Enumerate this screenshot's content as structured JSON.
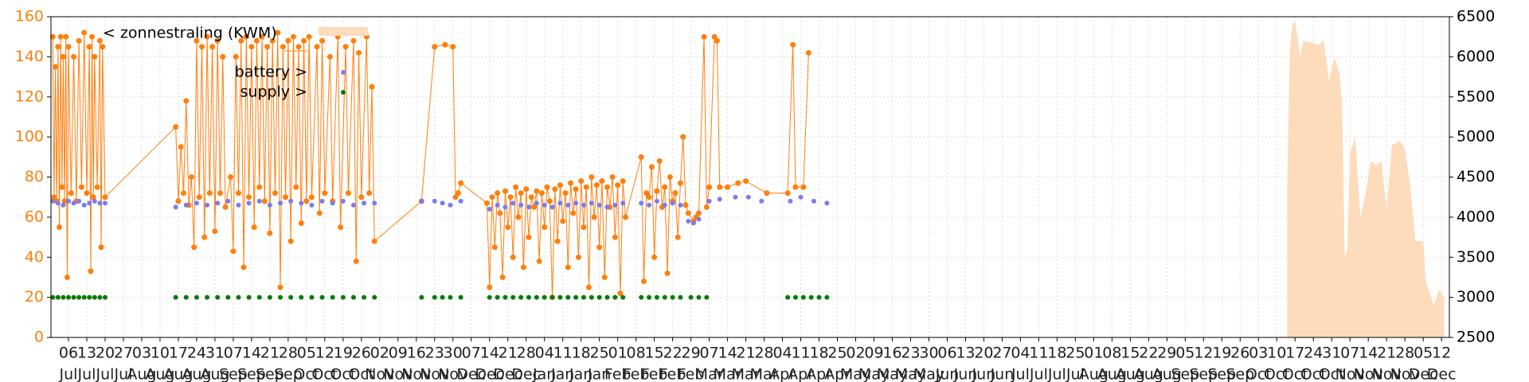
{
  "chart_data": {
    "type": "line",
    "xlim": [
      -6.7,
      528
    ],
    "ylim": [
      0,
      160
    ],
    "y2lim": [
      2500,
      6500
    ],
    "yticks": [
      0,
      20,
      40,
      60,
      80,
      100,
      120,
      140,
      160
    ],
    "y2ticks": [
      2500,
      3000,
      3500,
      4000,
      4500,
      5000,
      5500,
      6000,
      6500
    ],
    "grid": true,
    "xticks": [
      {
        "value": 0,
        "label": "06"
      },
      {
        "value": 7,
        "label": "13"
      },
      {
        "value": 14,
        "label": "20"
      },
      {
        "value": 21,
        "label": "27"
      },
      {
        "value": 28,
        "label": "03"
      },
      {
        "value": 35,
        "label": "10"
      },
      {
        "value": 42,
        "label": "17"
      },
      {
        "value": 49,
        "label": "24"
      },
      {
        "value": 56,
        "label": "31"
      },
      {
        "value": 63,
        "label": "07"
      },
      {
        "value": 70,
        "label": "14"
      },
      {
        "value": 77,
        "label": "21"
      },
      {
        "value": 84,
        "label": "28"
      },
      {
        "value": 91,
        "label": "05"
      },
      {
        "value": 98,
        "label": "12"
      },
      {
        "value": 105,
        "label": "19"
      },
      {
        "value": 112,
        "label": "26"
      },
      {
        "value": 119,
        "label": "02"
      },
      {
        "value": 126,
        "label": "09"
      },
      {
        "value": 133,
        "label": "16"
      },
      {
        "value": 140,
        "label": "23"
      },
      {
        "value": 147,
        "label": "30"
      },
      {
        "value": 154,
        "label": "07"
      },
      {
        "value": 161,
        "label": "14"
      },
      {
        "value": 168,
        "label": "21"
      },
      {
        "value": 175,
        "label": "28"
      },
      {
        "value": 182,
        "label": "04"
      },
      {
        "value": 189,
        "label": "11"
      },
      {
        "value": 196,
        "label": "18"
      },
      {
        "value": 203,
        "label": "25"
      },
      {
        "value": 210,
        "label": "01"
      },
      {
        "value": 217,
        "label": "08"
      },
      {
        "value": 224,
        "label": "15"
      },
      {
        "value": 231,
        "label": "22"
      },
      {
        "value": 238,
        "label": "29"
      },
      {
        "value": 245,
        "label": "07"
      },
      {
        "value": 252,
        "label": "14"
      },
      {
        "value": 259,
        "label": "21"
      },
      {
        "value": 266,
        "label": "28"
      },
      {
        "value": 273,
        "label": "04"
      },
      {
        "value": 280,
        "label": "11"
      },
      {
        "value": 287,
        "label": "18"
      },
      {
        "value": 294,
        "label": "25"
      },
      {
        "value": 301,
        "label": "02"
      },
      {
        "value": 308,
        "label": "09"
      },
      {
        "value": 315,
        "label": "16"
      },
      {
        "value": 322,
        "label": "23"
      },
      {
        "value": 329,
        "label": "30"
      },
      {
        "value": 336,
        "label": "06"
      },
      {
        "value": 343,
        "label": "13"
      },
      {
        "value": 350,
        "label": "20"
      },
      {
        "value": 357,
        "label": "27"
      },
      {
        "value": 364,
        "label": "04"
      },
      {
        "value": 371,
        "label": "11"
      },
      {
        "value": 378,
        "label": "18"
      },
      {
        "value": 385,
        "label": "25"
      },
      {
        "value": 392,
        "label": "01"
      },
      {
        "value": 399,
        "label": "08"
      },
      {
        "value": 406,
        "label": "15"
      },
      {
        "value": 413,
        "label": "22"
      },
      {
        "value": 420,
        "label": "29"
      },
      {
        "value": 427,
        "label": "05"
      },
      {
        "value": 434,
        "label": "12"
      },
      {
        "value": 441,
        "label": "19"
      },
      {
        "value": 448,
        "label": "26"
      },
      {
        "value": 455,
        "label": "03"
      },
      {
        "value": 462,
        "label": "10"
      },
      {
        "value": 469,
        "label": "17"
      },
      {
        "value": 476,
        "label": "24"
      },
      {
        "value": 483,
        "label": "31"
      },
      {
        "value": 490,
        "label": "07"
      },
      {
        "value": 497,
        "label": "14"
      },
      {
        "value": 504,
        "label": "21"
      },
      {
        "value": 511,
        "label": "28"
      },
      {
        "value": 518,
        "label": "05"
      },
      {
        "value": 525,
        "label": "12"
      }
    ],
    "xtick_months": [
      "Jul",
      "Jul",
      "Jul",
      "Jul",
      "Aug",
      "Aug",
      "Aug",
      "Aug",
      "Aug",
      "Sep",
      "Sep",
      "Sep",
      "Sep",
      "Oct",
      "Oct",
      "Oct",
      "Oct",
      "Nov",
      "Nov",
      "Nov",
      "Nov",
      "Nov",
      "Dec",
      "Dec",
      "Dec",
      "Dec",
      "Jan",
      "Jan",
      "Jan",
      "Jan",
      "Feb",
      "Feb",
      "Feb",
      "Feb",
      "Feb",
      "Mar",
      "Mar",
      "Mar",
      "Mar",
      "Apr",
      "Apr",
      "Apr",
      "Apr",
      "May",
      "May",
      "May",
      "May",
      "May",
      "Jun",
      "Jun",
      "Jun",
      "Jun",
      "Jul",
      "Jul",
      "Jul",
      "Jul",
      "Aug",
      "Aug",
      "Aug",
      "Aug",
      "Aug",
      "Sep",
      "Sep",
      "Sep",
      "Sep",
      "Oct",
      "Oct",
      "Oct",
      "Oct",
      "Oct",
      "Nov",
      "Nov",
      "Nov",
      "Nov",
      "Dec",
      "Dec"
    ],
    "series": [
      {
        "name": "< zonnestraling (KWM)",
        "color": "#ff7f0e",
        "style": "line",
        "x": [
          -6,
          -5.5,
          -5,
          -4.5,
          -4,
          -3.5,
          -3,
          -2.5,
          -2,
          -1.5,
          -1,
          -0.5,
          0,
          1,
          2,
          3,
          4,
          5,
          6,
          7,
          8,
          8.5,
          9,
          9.5,
          10,
          11,
          12,
          12.5,
          13,
          14,
          41,
          42,
          43,
          44,
          45,
          46,
          47,
          48,
          49,
          50,
          51,
          52,
          53,
          54,
          55,
          56,
          57,
          58,
          59,
          60,
          62,
          63,
          64,
          65,
          66,
          67,
          68,
          69,
          70,
          71,
          72,
          73,
          74,
          75,
          76,
          77,
          78,
          79,
          80,
          81,
          82,
          83,
          84,
          85,
          86,
          87,
          88,
          89,
          90,
          91,
          92,
          93,
          95,
          96,
          97,
          98,
          100,
          101,
          103,
          104,
          106,
          107,
          109,
          110,
          111,
          112,
          114,
          115,
          116,
          117,
          135,
          140,
          144,
          147,
          148,
          149,
          150,
          160,
          161,
          162,
          163,
          164,
          165,
          166,
          167,
          168,
          169,
          170,
          171,
          172,
          173,
          174,
          175,
          176,
          177,
          178,
          179,
          180,
          181,
          182,
          183,
          184,
          185,
          186,
          187,
          188,
          189,
          190,
          191,
          192,
          193,
          194,
          195,
          196,
          197,
          198,
          199,
          200,
          201,
          202,
          203,
          204,
          205,
          206,
          207,
          208,
          209,
          210,
          211,
          212,
          213,
          219,
          220,
          221,
          222,
          223,
          224,
          225,
          226,
          227,
          228,
          229,
          230,
          231,
          232,
          233,
          234,
          235,
          236,
          237,
          239,
          240,
          241,
          243,
          244,
          245,
          247,
          248,
          249,
          252,
          256,
          259,
          267,
          275,
          277,
          278,
          281,
          283
        ],
        "values": [
          150,
          70,
          135,
          68,
          145,
          55,
          150,
          75,
          140,
          68,
          150,
          30,
          145,
          72,
          140,
          68,
          148,
          75,
          152,
          72,
          145,
          33,
          150,
          70,
          140,
          75,
          148,
          45,
          145,
          70,
          105,
          68,
          95,
          72,
          118,
          66,
          80,
          45,
          148,
          70,
          145,
          50,
          150,
          72,
          145,
          53,
          148,
          72,
          140,
          65,
          80,
          43,
          140,
          72,
          148,
          35,
          150,
          70,
          145,
          55,
          148,
          75,
          150,
          68,
          145,
          52,
          148,
          72,
          152,
          25,
          145,
          70,
          148,
          48,
          150,
          75,
          145,
          57,
          148,
          68,
          150,
          70,
          145,
          62,
          148,
          72,
          140,
          68,
          150,
          55,
          145,
          72,
          148,
          38,
          142,
          70,
          150,
          72,
          125,
          48,
          68,
          145,
          146,
          145,
          70,
          72,
          77,
          67,
          25,
          70,
          45,
          72,
          62,
          30,
          73,
          55,
          70,
          40,
          75,
          60,
          72,
          35,
          74,
          50,
          70,
          65,
          73,
          38,
          72,
          55,
          75,
          68,
          20,
          74,
          48,
          76,
          58,
          72,
          35,
          77,
          62,
          74,
          40,
          78,
          55,
          75,
          25,
          80,
          60,
          76,
          45,
          78,
          30,
          75,
          65,
          80,
          50,
          76,
          22,
          78,
          60,
          90,
          28,
          72,
          70,
          85,
          40,
          73,
          88,
          65,
          75,
          32,
          80,
          68,
          72,
          50,
          77,
          100,
          66,
          62,
          58,
          60,
          62,
          150,
          65,
          75,
          150,
          148,
          75,
          75,
          77,
          78,
          72,
          72,
          146,
          75,
          75,
          142
        ]
      },
      {
        "name": "battery >",
        "color": "#7b7bf0",
        "style": "dots",
        "x": [
          -6,
          -4,
          -2,
          0,
          2,
          4,
          6,
          8,
          10,
          12,
          14,
          41,
          45,
          49,
          53,
          57,
          61,
          65,
          69,
          73,
          77,
          81,
          85,
          89,
          93,
          97,
          101,
          105,
          109,
          113,
          117,
          135,
          140,
          143,
          146,
          150,
          161,
          164,
          167,
          170,
          173,
          176,
          179,
          182,
          185,
          188,
          191,
          194,
          197,
          200,
          203,
          206,
          209,
          212,
          219,
          222,
          225,
          228,
          231,
          234,
          237,
          239,
          241,
          245,
          249,
          255,
          260,
          265,
          276,
          280,
          285,
          290
        ],
        "values": [
          68,
          67,
          66,
          68,
          67,
          68,
          66,
          67,
          68,
          67,
          67,
          65,
          66,
          67,
          66,
          67,
          68,
          66,
          67,
          68,
          66,
          67,
          68,
          67,
          66,
          68,
          67,
          68,
          66,
          67,
          67,
          68,
          68,
          67,
          66,
          68,
          64,
          66,
          65,
          67,
          66,
          65,
          67,
          66,
          65,
          67,
          66,
          67,
          66,
          67,
          66,
          65,
          66,
          67,
          67,
          66,
          68,
          66,
          67,
          66,
          58,
          57,
          59,
          68,
          69,
          70,
          70,
          68,
          68,
          70,
          68,
          67
        ]
      },
      {
        "name": "supply >",
        "color": "#0a7a0a",
        "style": "dots",
        "x": [
          -6,
          -4,
          -2,
          0,
          2,
          4,
          6,
          8,
          10,
          12,
          14,
          41,
          45,
          49,
          53,
          57,
          61,
          65,
          69,
          73,
          77,
          81,
          85,
          89,
          93,
          97,
          101,
          105,
          109,
          113,
          117,
          135,
          140,
          143,
          146,
          150,
          161,
          164,
          167,
          170,
          173,
          176,
          179,
          182,
          185,
          188,
          191,
          194,
          197,
          200,
          203,
          206,
          209,
          212,
          219,
          222,
          225,
          228,
          231,
          234,
          238,
          241,
          244,
          275,
          278,
          281,
          284,
          287,
          290
        ],
        "values": [
          20,
          20,
          20,
          20,
          20,
          20,
          20,
          20,
          20,
          20,
          20,
          20,
          20,
          20,
          20,
          20,
          20,
          20,
          20,
          20,
          20,
          20,
          20,
          20,
          20,
          20,
          20,
          20,
          20,
          20,
          20,
          20,
          20,
          20,
          20,
          20,
          20,
          20,
          20,
          20,
          20,
          20,
          20,
          20,
          20,
          20,
          20,
          20,
          20,
          20,
          20,
          20,
          20,
          20,
          20,
          20,
          20,
          20,
          20,
          20,
          20,
          20,
          20,
          20,
          20,
          20,
          20,
          20,
          20
        ]
      },
      {
        "color": "#fddcbc",
        "style": "area",
        "axis": "y2",
        "x": [
          466,
          467,
          468,
          469,
          471,
          472,
          475,
          478,
          480,
          482,
          484,
          486,
          487,
          488,
          489,
          490,
          492,
          494,
          496,
          498,
          500,
          502,
          504,
          506,
          509,
          511,
          513,
          515,
          518,
          519,
          521,
          522,
          524,
          526
        ],
        "values": [
          4400,
          6100,
          6400,
          6450,
          6000,
          6200,
          6180,
          6150,
          6200,
          5700,
          6000,
          5800,
          5400,
          3500,
          3600,
          4800,
          5000,
          4000,
          4300,
          4700,
          4650,
          4700,
          4100,
          4900,
          4950,
          4850,
          4400,
          3700,
          3700,
          3200,
          3000,
          2900,
          3100,
          3000
        ]
      }
    ]
  }
}
